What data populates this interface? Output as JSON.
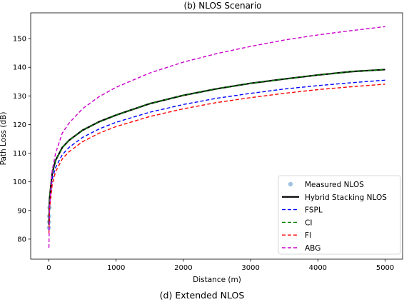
{
  "chart_data": {
    "type": "line",
    "title": "(b) NLOS Scenario",
    "caption": "(d) Extended NLOS",
    "xlabel": "Distance (m)",
    "ylabel": "Path Loss (dB)",
    "xlim": [
      -270,
      5270
    ],
    "ylim": [
      73,
      159
    ],
    "xticks": [
      0,
      1000,
      2000,
      3000,
      4000,
      5000
    ],
    "yticks": [
      80,
      90,
      100,
      110,
      120,
      130,
      140,
      150
    ],
    "legend_position": "lower-right",
    "series": [
      {
        "name": "Measured NLOS",
        "style": "scatter",
        "color": "#89b4d9",
        "x": [
          1,
          3,
          5,
          10
        ],
        "y": [
          84,
          86,
          88,
          91
        ]
      },
      {
        "name": "Hybrid Stacking NLOS",
        "style": "solid",
        "color": "#000000",
        "x": [
          1,
          10,
          50,
          100,
          200,
          300,
          500,
          750,
          1000,
          1500,
          2000,
          2500,
          3000,
          3500,
          4000,
          4500,
          5000
        ],
        "y": [
          85,
          94,
          103,
          107.5,
          112,
          114.5,
          118,
          121,
          123.3,
          127.3,
          130.2,
          132.5,
          134.4,
          135.9,
          137.3,
          138.5,
          139.2
        ]
      },
      {
        "name": "FSPL",
        "style": "dashed",
        "color": "#0000ff",
        "x": [
          1,
          10,
          50,
          100,
          200,
          300,
          500,
          750,
          1000,
          1500,
          2000,
          2500,
          3000,
          3500,
          4000,
          4500,
          5000
        ],
        "y": [
          83,
          92,
          101,
          105,
          109.5,
          112,
          115.5,
          118.5,
          120.8,
          124.3,
          127,
          129.2,
          130.9,
          132.4,
          133.6,
          134.6,
          135.5
        ]
      },
      {
        "name": "CI",
        "style": "dashed",
        "color": "#008000",
        "x": [
          1,
          10,
          50,
          100,
          200,
          300,
          500,
          750,
          1000,
          1500,
          2000,
          2500,
          3000,
          3500,
          4000,
          4500,
          5000
        ],
        "y": [
          85,
          94,
          103,
          107.5,
          112,
          114.5,
          118,
          121,
          123.3,
          127.3,
          130.2,
          132.5,
          134.4,
          135.9,
          137.3,
          138.5,
          139.2
        ]
      },
      {
        "name": "FI",
        "style": "dashed",
        "color": "#ff0000",
        "x": [
          1,
          10,
          50,
          100,
          200,
          300,
          500,
          750,
          1000,
          1500,
          2000,
          2500,
          3000,
          3500,
          4000,
          4500,
          5000
        ],
        "y": [
          82,
          90.5,
          99,
          103.5,
          108,
          110.5,
          114,
          117,
          119.3,
          122.8,
          125.5,
          127.7,
          129.4,
          130.9,
          132.2,
          133.2,
          134.1
        ]
      },
      {
        "name": "ABG",
        "style": "dashed",
        "color": "#cc00cc",
        "x": [
          1,
          10,
          50,
          100,
          200,
          300,
          500,
          750,
          1000,
          1500,
          2000,
          2500,
          3000,
          3500,
          4000,
          4500,
          5000
        ],
        "y": [
          77,
          91,
          104,
          110,
          117,
          120.5,
          125.5,
          129.8,
          133,
          138,
          141.8,
          144.8,
          147.3,
          149.5,
          151.3,
          152.8,
          154.2
        ]
      }
    ]
  }
}
